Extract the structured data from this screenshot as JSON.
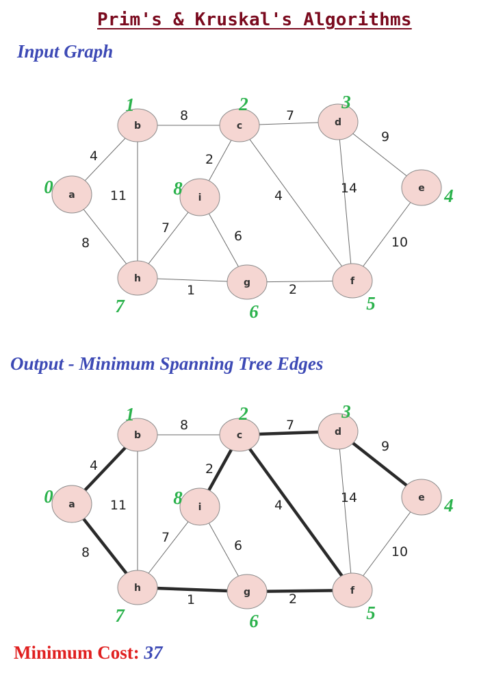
{
  "title": "Prim's & Kruskal's Algorithms",
  "input_title": "Input Graph",
  "output_title": "Output - Minimum Spanning Tree Edges",
  "cost": {
    "label": "Minimum Cost:",
    "value": "37"
  },
  "colors": {
    "title": "#7a0a1e",
    "section": "#3c49b5",
    "order": "#2bb24c",
    "node_fill": "#f5d6d2",
    "cost_label": "#e02020"
  },
  "graph": {
    "nodes": [
      {
        "id": "a",
        "order": "0"
      },
      {
        "id": "b",
        "order": "1"
      },
      {
        "id": "c",
        "order": "2"
      },
      {
        "id": "d",
        "order": "3"
      },
      {
        "id": "e",
        "order": "4"
      },
      {
        "id": "f",
        "order": "5"
      },
      {
        "id": "g",
        "order": "6"
      },
      {
        "id": "h",
        "order": "7"
      },
      {
        "id": "i",
        "order": "8"
      }
    ],
    "edges": [
      {
        "from": "a",
        "to": "b",
        "weight": "4",
        "mst": true
      },
      {
        "from": "a",
        "to": "h",
        "weight": "8",
        "mst": true
      },
      {
        "from": "b",
        "to": "c",
        "weight": "8",
        "mst": false
      },
      {
        "from": "b",
        "to": "h",
        "weight": "11",
        "mst": false
      },
      {
        "from": "c",
        "to": "d",
        "weight": "7",
        "mst": true
      },
      {
        "from": "c",
        "to": "i",
        "weight": "2",
        "mst": true
      },
      {
        "from": "c",
        "to": "f",
        "weight": "4",
        "mst": true
      },
      {
        "from": "d",
        "to": "e",
        "weight": "9",
        "mst": true
      },
      {
        "from": "d",
        "to": "f",
        "weight": "14",
        "mst": false
      },
      {
        "from": "e",
        "to": "f",
        "weight": "10",
        "mst": false
      },
      {
        "from": "i",
        "to": "h",
        "weight": "7",
        "mst": false
      },
      {
        "from": "i",
        "to": "g",
        "weight": "6",
        "mst": false
      },
      {
        "from": "h",
        "to": "g",
        "weight": "1",
        "mst": true
      },
      {
        "from": "g",
        "to": "f",
        "weight": "2",
        "mst": true
      }
    ]
  }
}
